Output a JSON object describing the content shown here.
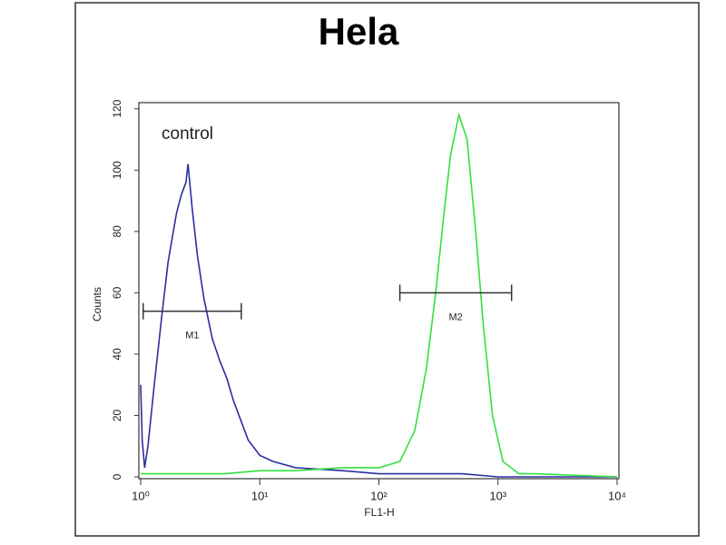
{
  "chart_data": {
    "type": "line",
    "title": "Hela",
    "xlabel": "FL1-H",
    "ylabel": "Counts",
    "xscale": "log",
    "xlim": [
      1,
      10000
    ],
    "ylim": [
      0,
      122
    ],
    "xticks": [
      {
        "value": 1,
        "label": "10⁰"
      },
      {
        "value": 10,
        "label": "10¹"
      },
      {
        "value": 100,
        "label": "10²"
      },
      {
        "value": 1000,
        "label": "10³"
      },
      {
        "value": 10000,
        "label": "10⁴"
      }
    ],
    "yticks": [
      0,
      20,
      40,
      60,
      80,
      100,
      120
    ],
    "series": [
      {
        "name": "control",
        "color": "#2b2fa0",
        "x": [
          1,
          1.03,
          1.08,
          1.15,
          1.3,
          1.5,
          1.7,
          2,
          2.2,
          2.4,
          2.5,
          2.7,
          3,
          3.4,
          4,
          4.6,
          5.3,
          6,
          7,
          8,
          10,
          13,
          20,
          50,
          100,
          200,
          500,
          1000,
          3000,
          10000
        ],
        "values": [
          30,
          12,
          3,
          10,
          30,
          52,
          70,
          86,
          92,
          96,
          102,
          88,
          72,
          58,
          45,
          38,
          32,
          25,
          18,
          12,
          7,
          5,
          3,
          2,
          1,
          1,
          1,
          0,
          0,
          0
        ]
      },
      {
        "color": "#33e040",
        "x": [
          1,
          5,
          10,
          20,
          50,
          100,
          150,
          200,
          250,
          300,
          350,
          400,
          470,
          550,
          650,
          750,
          900,
          1100,
          1500,
          2000,
          10000
        ],
        "values": [
          1,
          1,
          2,
          2,
          3,
          3,
          5,
          15,
          35,
          60,
          85,
          105,
          118,
          110,
          80,
          50,
          20,
          5,
          1,
          1,
          0
        ]
      }
    ],
    "annotations": [
      {
        "label": "M1",
        "x": [
          1.05,
          7
        ],
        "y": 54
      },
      {
        "label": "M2",
        "x": [
          150,
          1300
        ],
        "y": 60
      }
    ]
  }
}
